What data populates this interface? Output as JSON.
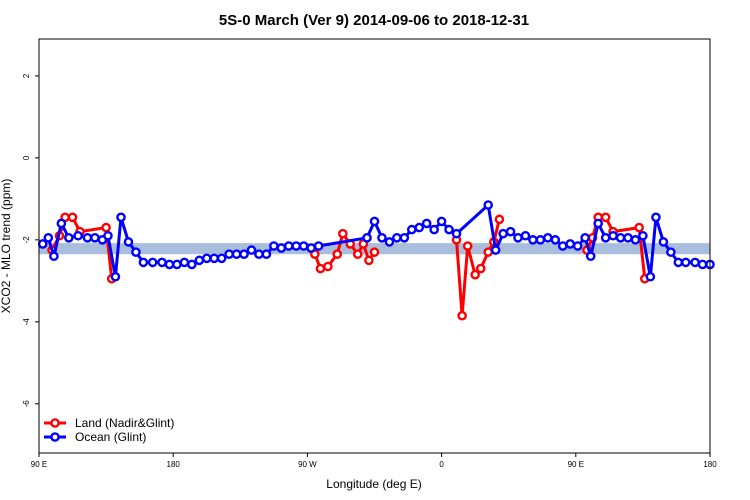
{
  "chart_data": {
    "type": "line",
    "title": "5S-0 March (Ver 9)   2014-09-06 to 2018-12-31",
    "xlabel": "Longitude (deg E)",
    "ylabel": "XCO2 - MLO trend (ppm)",
    "xlim": [
      90,
      450
    ],
    "ylim": [
      -7.2,
      2.9
    ],
    "x_ticks": [
      {
        "value": 90,
        "label": "90 E"
      },
      {
        "value": 162,
        "label": "180"
      },
      {
        "value": 234,
        "label": "90 W"
      },
      {
        "value": 306,
        "label": "0"
      },
      {
        "value": 378,
        "label": "90 E"
      },
      {
        "value": 450,
        "label": "180"
      }
    ],
    "y_ticks": [
      {
        "value": 2,
        "label": "2"
      },
      {
        "value": 0,
        "label": "0"
      },
      {
        "value": -2,
        "label": "-2"
      },
      {
        "value": -4,
        "label": "-4"
      },
      {
        "value": -6,
        "label": "-6"
      }
    ],
    "band": {
      "y_min": -2.35,
      "y_max": -2.08,
      "color": "#a8bedc"
    },
    "legend": {
      "position": "bottom-left",
      "entries": [
        {
          "name": "Land (Nadir&Glint)",
          "color": "#ff0000"
        },
        {
          "name": "Ocean (Glint)",
          "color": "#0000ff"
        }
      ]
    },
    "series": [
      {
        "name": "Land (Nadir&Glint)",
        "color": "#ff0000",
        "segments": [
          [
            [
              97,
              -2.25
            ],
            [
              101,
              -1.9
            ],
            [
              104,
              -1.45
            ],
            [
              108,
              -1.45
            ],
            [
              112,
              -1.8
            ],
            [
              126,
              -1.7
            ],
            [
              129,
              -2.95
            ]
          ],
          [
            [
              238,
              -2.35
            ],
            [
              241,
              -2.7
            ],
            [
              245,
              -2.65
            ],
            [
              250,
              -2.35
            ],
            [
              253,
              -1.85
            ],
            [
              257,
              -2.1
            ],
            [
              261,
              -2.35
            ],
            [
              264,
              -2.1
            ],
            [
              267,
              -2.5
            ],
            [
              270,
              -2.3
            ]
          ],
          [
            [
              314,
              -2.0
            ],
            [
              317,
              -3.85
            ],
            [
              320,
              -2.15
            ],
            [
              324,
              -2.85
            ],
            [
              327,
              -2.7
            ],
            [
              331,
              -2.3
            ],
            [
              334,
              -2.05
            ],
            [
              337,
              -1.5
            ]
          ],
          [
            [
              384,
              -2.25
            ],
            [
              387,
              -1.95
            ],
            [
              390,
              -1.45
            ],
            [
              394,
              -1.45
            ],
            [
              398,
              -1.8
            ],
            [
              412,
              -1.7
            ],
            [
              415,
              -2.95
            ]
          ]
        ]
      },
      {
        "name": "Ocean (Glint)",
        "color": "#0000ff",
        "points": [
          [
            92,
            -2.1
          ],
          [
            95,
            -1.95
          ],
          [
            98,
            -2.4
          ],
          [
            102,
            -1.6
          ],
          [
            106,
            -1.95
          ],
          [
            111,
            -1.9
          ],
          [
            116,
            -1.95
          ],
          [
            120,
            -1.95
          ],
          [
            124,
            -2.0
          ],
          [
            127,
            -1.9
          ],
          [
            131,
            -2.9
          ],
          [
            134,
            -1.45
          ],
          [
            138,
            -2.05
          ],
          [
            142,
            -2.3
          ],
          [
            146,
            -2.55
          ],
          [
            151,
            -2.55
          ],
          [
            156,
            -2.55
          ],
          [
            160,
            -2.6
          ],
          [
            164,
            -2.6
          ],
          [
            168,
            -2.55
          ],
          [
            172,
            -2.6
          ],
          [
            176,
            -2.5
          ],
          [
            180,
            -2.45
          ],
          [
            184,
            -2.45
          ],
          [
            188,
            -2.45
          ],
          [
            192,
            -2.35
          ],
          [
            196,
            -2.35
          ],
          [
            200,
            -2.35
          ],
          [
            204,
            -2.25
          ],
          [
            208,
            -2.35
          ],
          [
            212,
            -2.35
          ],
          [
            216,
            -2.15
          ],
          [
            220,
            -2.2
          ],
          [
            224,
            -2.15
          ],
          [
            228,
            -2.15
          ],
          [
            232,
            -2.15
          ],
          [
            236,
            -2.2
          ],
          [
            240,
            -2.15
          ],
          [
            266,
            -1.95
          ],
          [
            270,
            -1.55
          ],
          [
            274,
            -1.95
          ],
          [
            278,
            -2.05
          ],
          [
            282,
            -1.95
          ],
          [
            286,
            -1.95
          ],
          [
            290,
            -1.75
          ],
          [
            294,
            -1.7
          ],
          [
            298,
            -1.6
          ],
          [
            302,
            -1.75
          ],
          [
            306,
            -1.55
          ],
          [
            310,
            -1.75
          ],
          [
            314,
            -1.85
          ],
          [
            331,
            -1.15
          ],
          [
            335,
            -2.25
          ],
          [
            339,
            -1.85
          ],
          [
            343,
            -1.8
          ],
          [
            347,
            -1.95
          ],
          [
            351,
            -1.9
          ],
          [
            355,
            -2.0
          ],
          [
            359,
            -2.0
          ],
          [
            363,
            -1.95
          ],
          [
            367,
            -2.0
          ],
          [
            371,
            -2.15
          ],
          [
            375,
            -2.1
          ],
          [
            379,
            -2.15
          ],
          [
            383,
            -1.95
          ],
          [
            386,
            -2.4
          ],
          [
            390,
            -1.6
          ],
          [
            394,
            -1.95
          ],
          [
            398,
            -1.9
          ],
          [
            402,
            -1.95
          ],
          [
            406,
            -1.95
          ],
          [
            410,
            -2.0
          ],
          [
            414,
            -1.9
          ],
          [
            418,
            -2.9
          ],
          [
            421,
            -1.45
          ],
          [
            425,
            -2.05
          ],
          [
            429,
            -2.3
          ],
          [
            433,
            -2.55
          ],
          [
            437,
            -2.55
          ],
          [
            442,
            -2.55
          ],
          [
            446,
            -2.6
          ],
          [
            450,
            -2.6
          ]
        ]
      }
    ]
  }
}
